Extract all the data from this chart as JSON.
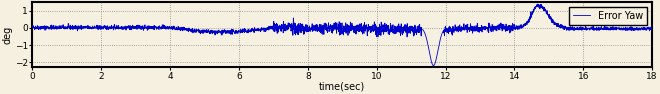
{
  "title": "",
  "xlabel": "time(sec)",
  "ylabel": "deg",
  "xlim": [
    0,
    18
  ],
  "ylim": [
    -2.3,
    1.5
  ],
  "yticks": [
    -2,
    -1,
    0,
    1
  ],
  "xticks": [
    0,
    2,
    4,
    6,
    8,
    10,
    12,
    14,
    16,
    18
  ],
  "line_color": "#0000cc",
  "legend_label": "Error Yaw",
  "figsize": [
    6.6,
    0.94
  ],
  "dpi": 100,
  "bg_color": "#f5f0e0",
  "seed": 42,
  "n_points": 3600
}
